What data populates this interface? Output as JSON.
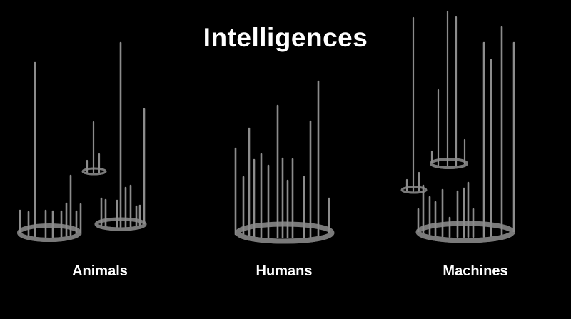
{
  "title": "Intelligences",
  "groups": {
    "animals": {
      "label": "Animals"
    },
    "humans": {
      "label": "Humans"
    },
    "machines": {
      "label": "Machines"
    }
  },
  "colors": {
    "background": "#000000",
    "ring": "#7a7a7a",
    "rod": "#8c8c8c",
    "text": "#ffffff"
  }
}
